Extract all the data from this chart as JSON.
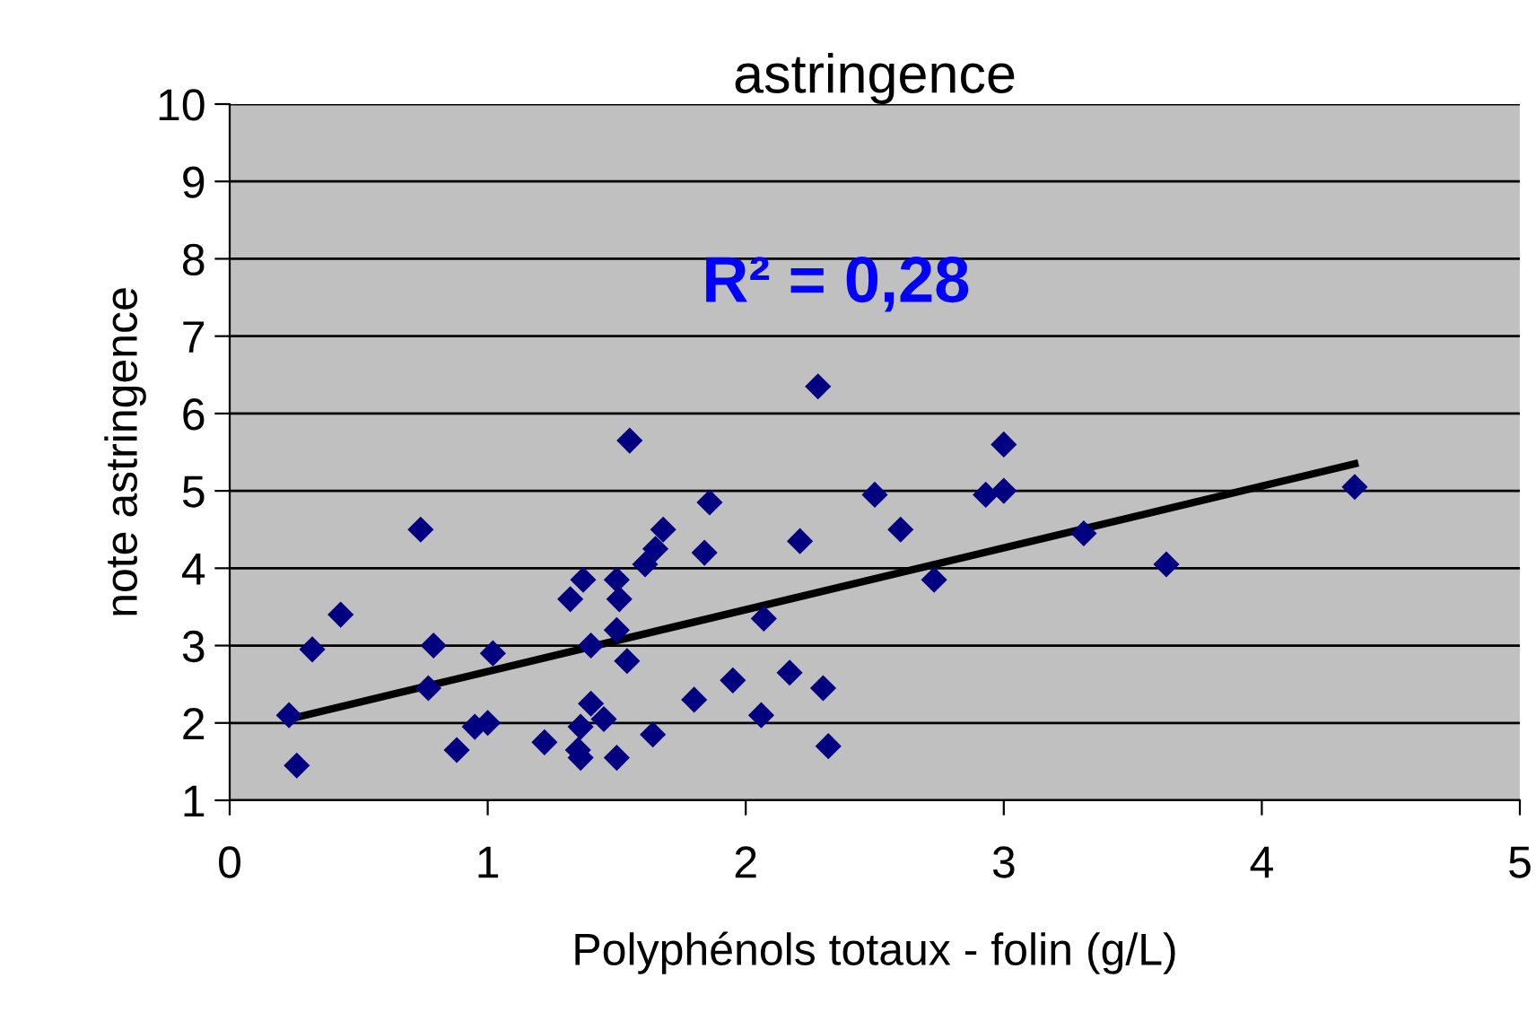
{
  "chart_data": {
    "type": "scatter",
    "title": "astringence",
    "xlabel": "Polyphénols totaux - folin (g/L)",
    "ylabel": "note astringence",
    "annotations": [
      "R² = 0,28"
    ],
    "xlim": [
      0,
      5
    ],
    "ylim": [
      1,
      10
    ],
    "xticks": [
      0,
      1,
      2,
      3,
      4,
      5
    ],
    "yticks": [
      1,
      2,
      3,
      4,
      5,
      6,
      7,
      8,
      9,
      10
    ],
    "grid": "y",
    "legend": false,
    "series": [
      {
        "marker": "diamond",
        "color": "#000080",
        "x": [
          0.23,
          0.26,
          0.32,
          0.43,
          0.74,
          0.77,
          0.79,
          0.88,
          0.95,
          1.0,
          1.02,
          1.22,
          1.32,
          1.35,
          1.36,
          1.36,
          1.37,
          1.4,
          1.4,
          1.45,
          1.5,
          1.5,
          1.51,
          1.5,
          1.54,
          1.55,
          1.61,
          1.64,
          1.65,
          1.68,
          1.8,
          1.84,
          1.86,
          1.95,
          2.06,
          2.07,
          2.17,
          2.21,
          2.28,
          2.3,
          2.32,
          2.5,
          2.6,
          2.73,
          2.93,
          3.0,
          3.0,
          3.31,
          3.63,
          4.36
        ],
        "values": [
          2.1,
          1.45,
          2.95,
          3.4,
          4.5,
          2.45,
          3.0,
          1.65,
          1.95,
          2.0,
          2.9,
          1.75,
          3.6,
          1.65,
          1.95,
          1.55,
          3.85,
          3.0,
          2.25,
          2.05,
          3.85,
          3.2,
          3.6,
          1.55,
          2.8,
          5.65,
          4.05,
          1.85,
          4.25,
          4.5,
          2.3,
          4.2,
          4.85,
          2.55,
          2.1,
          3.35,
          2.65,
          4.35,
          6.35,
          2.45,
          1.7,
          4.95,
          4.5,
          3.85,
          4.95,
          5.0,
          5.6,
          4.45,
          4.05,
          5.05
        ]
      },
      {
        "type": "line",
        "color": "#000000",
        "x": [
          0.23,
          4.36
        ],
        "values": [
          2.05,
          5.35
        ]
      }
    ]
  }
}
